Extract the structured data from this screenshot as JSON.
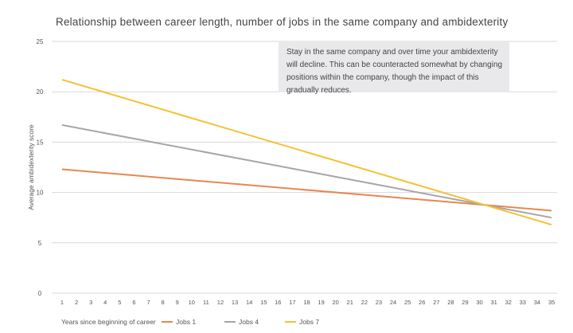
{
  "chart_data": {
    "type": "line",
    "title": "Relationship between career length, number of jobs in the same company and ambidexterity",
    "xlabel": "Years since beginning of career",
    "ylabel": "Average ambidexterity score",
    "x": [
      1,
      2,
      3,
      4,
      5,
      6,
      7,
      8,
      9,
      10,
      11,
      12,
      13,
      14,
      15,
      16,
      17,
      18,
      19,
      20,
      21,
      22,
      23,
      24,
      25,
      26,
      27,
      28,
      29,
      30,
      31,
      32,
      33,
      34,
      35
    ],
    "ylim": [
      0,
      25
    ],
    "yticks": [
      0,
      5,
      10,
      15,
      20,
      25
    ],
    "grid": true,
    "legend_placement": "bottom",
    "series": [
      {
        "name": "Jobs 1",
        "color": "#e8874f",
        "start": [
          1,
          12.3
        ],
        "end": [
          35,
          8.2
        ]
      },
      {
        "name": "Jobs 4",
        "color": "#a6a6a6",
        "start": [
          1,
          16.7
        ],
        "end": [
          35,
          7.5
        ]
      },
      {
        "name": "Jobs 7",
        "color": "#f5c034",
        "start": [
          1,
          21.2
        ],
        "end": [
          35,
          6.8
        ]
      }
    ],
    "annotation": "Stay in the same company and over time your ambidexterity will decline. This can be counteracted somewhat by changing positions within the company, though the impact of this gradually reduces."
  }
}
